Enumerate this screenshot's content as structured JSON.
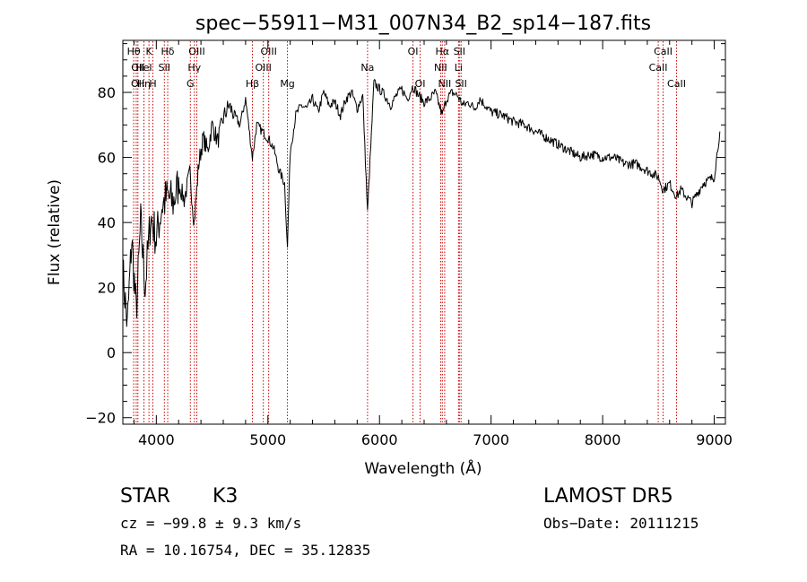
{
  "chart_data": {
    "type": "line",
    "title": "spec−55911−M31_007N34_B2_sp14−187.fits",
    "xlabel": "Wavelength (Å)",
    "ylabel": "Flux (relative)",
    "xlim": [
      3700,
      9100
    ],
    "ylim": [
      -22,
      96
    ],
    "x_ticks": [
      4000,
      5000,
      6000,
      7000,
      8000,
      9000
    ],
    "y_ticks": [
      -20,
      0,
      20,
      40,
      60,
      80
    ],
    "x_tick_labels": [
      "4000",
      "5000",
      "6000",
      "7000",
      "8000",
      "9000"
    ],
    "y_tick_labels": [
      "−20",
      "0",
      "20",
      "40",
      "60",
      "80"
    ],
    "grid": false,
    "line_color": "#000000",
    "marker_color": "#cc0000",
    "series": [
      {
        "x": [
          3700,
          3740,
          3780,
          3820,
          3860,
          3900,
          3950,
          4000,
          4050,
          4100,
          4150,
          4200,
          4250,
          4300,
          4340,
          4380,
          4420,
          4460,
          4500,
          4550,
          4600,
          4650,
          4700,
          4750,
          4800,
          4861,
          4900,
          4950,
          5000,
          5050,
          5100,
          5150,
          5175,
          5200,
          5250,
          5300,
          5350,
          5400,
          5450,
          5500,
          5550,
          5600,
          5650,
          5700,
          5750,
          5800,
          5850,
          5893,
          5950,
          6000,
          6050,
          6100,
          6150,
          6200,
          6250,
          6300,
          6350,
          6400,
          6450,
          6500,
          6563,
          6600,
          6650,
          6700,
          6750,
          6800,
          6850,
          6900,
          6950,
          7000,
          7100,
          7200,
          7300,
          7400,
          7500,
          7600,
          7700,
          7800,
          7900,
          8000,
          8100,
          8200,
          8300,
          8400,
          8500,
          8542,
          8600,
          8662,
          8700,
          8800,
          8900,
          9000,
          9050
        ],
        "y": [
          25,
          8,
          35,
          12,
          40,
          20,
          42,
          35,
          45,
          48,
          46,
          52,
          47,
          55,
          40,
          58,
          66,
          62,
          70,
          65,
          72,
          76,
          73,
          70,
          78,
          60,
          70,
          68,
          66,
          63,
          56,
          52,
          32,
          62,
          73,
          76,
          75,
          78,
          74,
          80,
          76,
          77,
          73,
          78,
          80,
          75,
          79,
          43,
          83,
          81,
          79,
          76,
          79,
          81,
          78,
          82,
          79,
          77,
          78,
          80,
          73,
          78,
          80,
          79,
          76,
          77,
          75,
          78,
          76,
          74,
          73,
          71,
          70,
          68,
          66,
          64,
          62,
          60,
          61,
          60,
          60,
          58,
          58,
          56,
          54,
          50,
          52,
          48,
          50,
          46,
          52,
          54,
          68
        ]
      }
    ],
    "lines": [
      {
        "wave": 3797,
        "row": 0,
        "label": "Hθ"
      },
      {
        "wave": 3835,
        "row": 1,
        "label": "OII"
      },
      {
        "wave": 3820,
        "row": 2,
        "label": "OI"
      },
      {
        "wave": 3889,
        "row": 2,
        "label": "Hη"
      },
      {
        "wave": 3934,
        "row": 0,
        "label": "K"
      },
      {
        "wave": 3889,
        "row": 1,
        "label": "HeI"
      },
      {
        "wave": 3969,
        "row": 2,
        "label": "H"
      },
      {
        "wave": 4102,
        "row": 0,
        "label": "Hδ"
      },
      {
        "wave": 4072,
        "row": 1,
        "label": "SII"
      },
      {
        "wave": 4363,
        "row": 0,
        "label": "OIII"
      },
      {
        "wave": 4341,
        "row": 1,
        "label": "Hγ"
      },
      {
        "wave": 4305,
        "row": 2,
        "label": "G"
      },
      {
        "wave": 4861,
        "row": 2,
        "label": "Hβ"
      },
      {
        "wave": 5007,
        "row": 0,
        "label": "OIII"
      },
      {
        "wave": 4959,
        "row": 1,
        "label": "OIII"
      },
      {
        "wave": 5175,
        "row": 2,
        "label": "Mg"
      },
      {
        "wave": 5893,
        "row": 1,
        "label": "Na"
      },
      {
        "wave": 6300,
        "row": 0,
        "label": "OI"
      },
      {
        "wave": 6364,
        "row": 2,
        "label": "OI"
      },
      {
        "wave": 6563,
        "row": 0,
        "label": "Hα"
      },
      {
        "wave": 6548,
        "row": 1,
        "label": "NII"
      },
      {
        "wave": 6584,
        "row": 2,
        "label": "NII"
      },
      {
        "wave": 6716,
        "row": 0,
        "label": "SII"
      },
      {
        "wave": 6708,
        "row": 1,
        "label": "Li"
      },
      {
        "wave": 6731,
        "row": 2,
        "label": "SII"
      },
      {
        "wave": 8542,
        "row": 0,
        "label": "CaII"
      },
      {
        "wave": 8498,
        "row": 1,
        "label": "CaII"
      },
      {
        "wave": 8662,
        "row": 2,
        "label": "CaII"
      }
    ]
  },
  "info": {
    "object_class": "STAR",
    "subclass": "K3",
    "survey": "LAMOST DR5",
    "redshift_text": "cz = −99.8 ± 9.3 km/s",
    "obs_date": "Obs−Date: 20111215",
    "coords": "RA =  10.16754, DEC =  35.12835"
  }
}
